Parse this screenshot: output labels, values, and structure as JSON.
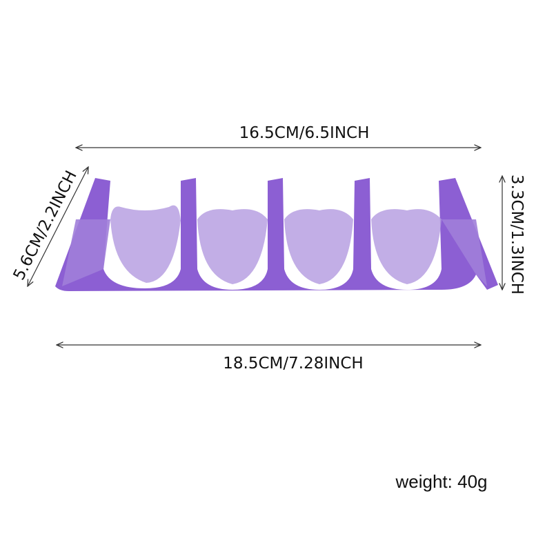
{
  "dimensions": {
    "top_width": "16.5CM/6.5INCH",
    "bottom_width": "18.5CM/7.28INCH",
    "depth": "5.6CM/2.2INCH",
    "height": "3.3CM/1.3INCH"
  },
  "weight": "weight: 40g"
}
